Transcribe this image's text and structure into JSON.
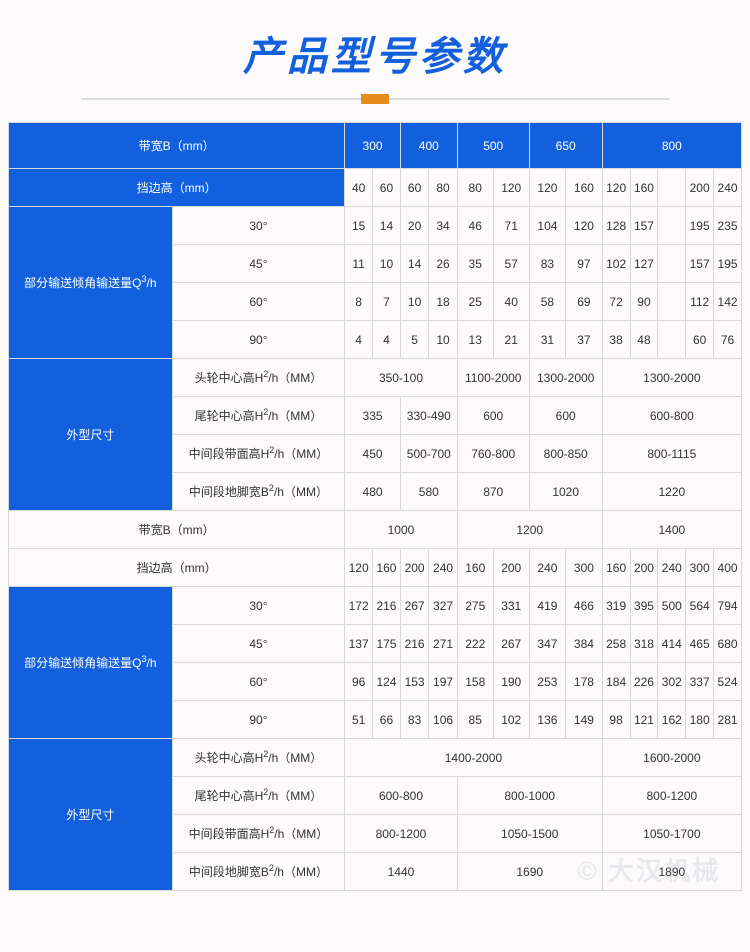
{
  "title": "产品型号参数",
  "labels": {
    "beltWidthB": "带宽B（mm）",
    "guardHeight": "挡边高（mm）",
    "partialConvey": "部分输送倾角输送量Q",
    "partialConveyUnit": "/h",
    "angle30": "30°",
    "angle45": "45°",
    "angle60": "60°",
    "angle90": "90°",
    "outerDim": "外型尺寸",
    "headCenter": "头轮中心高H",
    "tailCenter": "尾轮中心高H",
    "midBeltHeight": "中间段带面高H",
    "midGroundWidth": "中间段地脚宽B",
    "mmSuffix": "/h（MM）"
  },
  "top": {
    "widths": [
      "300",
      "400",
      "500",
      "650",
      "800"
    ],
    "guard": [
      "40",
      "60",
      "60",
      "80",
      "80",
      "120",
      "120",
      "160",
      "120",
      "160",
      "200",
      "240"
    ],
    "r30": [
      "15",
      "14",
      "20",
      "34",
      "46",
      "71",
      "104",
      "120",
      "128",
      "157",
      "195",
      "235"
    ],
    "r45": [
      "11",
      "10",
      "14",
      "26",
      "35",
      "57",
      "83",
      "97",
      "102",
      "127",
      "157",
      "195"
    ],
    "r60": [
      "8",
      "7",
      "10",
      "18",
      "25",
      "40",
      "58",
      "69",
      "72",
      "90",
      "112",
      "142"
    ],
    "r90": [
      "4",
      "4",
      "5",
      "10",
      "13",
      "21",
      "31",
      "37",
      "38",
      "48",
      "60",
      "76"
    ],
    "head": [
      "350-100",
      "1100-2000",
      "1300-2000",
      "1300-2000"
    ],
    "tail": [
      "335",
      "330-490",
      "600",
      "600",
      "600-800"
    ],
    "midBelt": [
      "450",
      "500-700",
      "760-800",
      "800-850",
      "800-1115"
    ],
    "midGround": [
      "480",
      "580",
      "870",
      "1020",
      "1220"
    ]
  },
  "bot": {
    "widths": [
      "1000",
      "1200",
      "1400"
    ],
    "guard": [
      "120",
      "160",
      "200",
      "240",
      "160",
      "200",
      "240",
      "300",
      "160",
      "200",
      "240",
      "300",
      "400"
    ],
    "r30": [
      "172",
      "216",
      "267",
      "327",
      "275",
      "331",
      "419",
      "466",
      "319",
      "395",
      "500",
      "564",
      "794"
    ],
    "r45": [
      "137",
      "175",
      "216",
      "271",
      "222",
      "267",
      "347",
      "384",
      "258",
      "318",
      "414",
      "465",
      "680"
    ],
    "r60": [
      "96",
      "124",
      "153",
      "197",
      "158",
      "190",
      "253",
      "178",
      "184",
      "226",
      "302",
      "337",
      "524"
    ],
    "r90": [
      "51",
      "66",
      "83",
      "106",
      "85",
      "102",
      "136",
      "149",
      "98",
      "121",
      "162",
      "180",
      "281"
    ],
    "head": [
      "1400-2000",
      "1600-2000"
    ],
    "tail": [
      "600-800",
      "800-1000",
      "800-1200"
    ],
    "midBelt": [
      "800-1200",
      "1050-1500",
      "1050-1700"
    ],
    "midGround": [
      "1440",
      "1690",
      "1890"
    ]
  },
  "watermark": "© 大汉机械"
}
